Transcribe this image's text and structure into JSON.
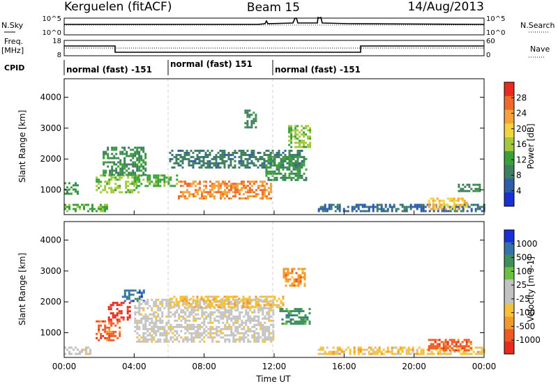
{
  "header": {
    "station": "Kerguelen (fitACF)",
    "beam": "Beam 15",
    "date": "14/Aug/2013"
  },
  "noise_panel": {
    "left_label": "N.Sky",
    "right_label": "N.Search",
    "left_ticks": [
      "10^5",
      "10^0"
    ],
    "right_ticks": [
      "10^5",
      "10^0"
    ]
  },
  "freq_panel": {
    "left_label_top": "Freq.",
    "left_label_units": "[MHz]",
    "right_label": "Nave",
    "left_ticks": [
      "18",
      "8"
    ],
    "right_ticks": [
      "60",
      "0"
    ]
  },
  "cpid": {
    "label": "CPID",
    "segments": [
      {
        "start_hour": 0,
        "end_hour": 6,
        "text": "normal (fast) -151"
      },
      {
        "start_hour": 6,
        "end_hour": 12,
        "text": "normal (fast) 151"
      },
      {
        "start_hour": 12,
        "end_hour": 24,
        "text": "normal (fast) -151"
      }
    ]
  },
  "colors": {
    "power": [
      "#1b2fd6",
      "#2f5ea8",
      "#3f7f5f",
      "#3aa13a",
      "#a3c93a",
      "#f3d43a",
      "#f6a23a",
      "#ef6a2a",
      "#e82a1f"
    ],
    "velocity": [
      "#e82a1f",
      "#ef5a23",
      "#f39a2c",
      "#f6c233",
      "#c2c2c2",
      "#c2c2c2",
      "#6cc040",
      "#3f8f5a",
      "#3672a8",
      "#1b2fd6"
    ]
  },
  "chart_data": [
    {
      "type": "heatmap",
      "name": "power",
      "ylabel": "Slant Range [km]",
      "ylim": [
        200,
        4600
      ],
      "yticks": [
        "1000",
        "2000",
        "3000",
        "4000"
      ],
      "colorbar": {
        "label": "Power [dB]",
        "ticks": [
          "4",
          "8",
          "12",
          "16",
          "20",
          "24",
          "28"
        ],
        "range": [
          0,
          30
        ]
      },
      "echo_regions": [
        {
          "t0": 0.0,
          "t1": 0.8,
          "r0": 900,
          "r1": 1250,
          "value": 10
        },
        {
          "t0": 0.0,
          "t1": 2.5,
          "r0": 300,
          "r1": 550,
          "value": 12
        },
        {
          "t0": 1.8,
          "t1": 4.2,
          "r0": 900,
          "r1": 1500,
          "value": 14
        },
        {
          "t0": 2.2,
          "t1": 4.6,
          "r0": 1500,
          "r1": 2400,
          "value": 9
        },
        {
          "t0": 4.0,
          "t1": 6.5,
          "r0": 1100,
          "r1": 1500,
          "value": 12
        },
        {
          "t0": 6.5,
          "t1": 11.8,
          "r0": 700,
          "r1": 1300,
          "value": 24
        },
        {
          "t0": 6.0,
          "t1": 13.6,
          "r0": 1700,
          "r1": 2300,
          "value": 7
        },
        {
          "t0": 11.5,
          "t1": 13.8,
          "r0": 1300,
          "r1": 2100,
          "value": 10
        },
        {
          "t0": 12.8,
          "t1": 14.0,
          "r0": 2400,
          "r1": 3100,
          "value": 14
        },
        {
          "t0": 10.3,
          "t1": 11.0,
          "r0": 3000,
          "r1": 3600,
          "value": 8
        },
        {
          "t0": 14.5,
          "t1": 24.0,
          "r0": 300,
          "r1": 550,
          "value": 5
        },
        {
          "t0": 20.8,
          "t1": 23.0,
          "r0": 400,
          "r1": 750,
          "value": 20
        },
        {
          "t0": 22.5,
          "t1": 23.7,
          "r0": 950,
          "r1": 1200,
          "value": 8
        }
      ]
    },
    {
      "type": "heatmap",
      "name": "velocity",
      "ylabel": "Slant Range [km]",
      "ylim": [
        200,
        4600
      ],
      "yticks": [
        "1000",
        "2000",
        "3000",
        "4000"
      ],
      "colorbar": {
        "label": "Velocity [m s-1]",
        "ticks": [
          "-1000",
          "-500",
          "-100",
          "-25",
          "25",
          "100",
          "500",
          "1000"
        ],
        "range": [
          -1200,
          1200
        ]
      },
      "echo_regions": [
        {
          "t0": 0.0,
          "t1": 1.5,
          "r0": 300,
          "r1": 550,
          "value": 10
        },
        {
          "t0": 1.8,
          "t1": 3.2,
          "r0": 750,
          "r1": 1400,
          "value": -300
        },
        {
          "t0": 2.5,
          "t1": 3.8,
          "r0": 1400,
          "r1": 2000,
          "value": -700
        },
        {
          "t0": 3.3,
          "t1": 4.5,
          "r0": 2000,
          "r1": 2400,
          "value": 800
        },
        {
          "t0": 4.0,
          "t1": 12.0,
          "r0": 700,
          "r1": 2100,
          "value": 0
        },
        {
          "t0": 6.0,
          "t1": 12.5,
          "r0": 1800,
          "r1": 2200,
          "value": -30
        },
        {
          "t0": 12.5,
          "t1": 13.8,
          "r0": 2500,
          "r1": 3100,
          "value": -150
        },
        {
          "t0": 12.3,
          "t1": 14.0,
          "r0": 1300,
          "r1": 1800,
          "value": 150
        },
        {
          "t0": 14.5,
          "t1": 24.0,
          "r0": 300,
          "r1": 550,
          "value": -40
        },
        {
          "t0": 20.8,
          "t1": 23.2,
          "r0": 400,
          "r1": 800,
          "value": -350
        }
      ]
    }
  ],
  "xaxis": {
    "label": "Time UT",
    "ticks": [
      "00:00",
      "04:00",
      "08:00",
      "12:00",
      "16:00",
      "20:00",
      "00:00"
    ],
    "range_hours": [
      0,
      24
    ]
  }
}
